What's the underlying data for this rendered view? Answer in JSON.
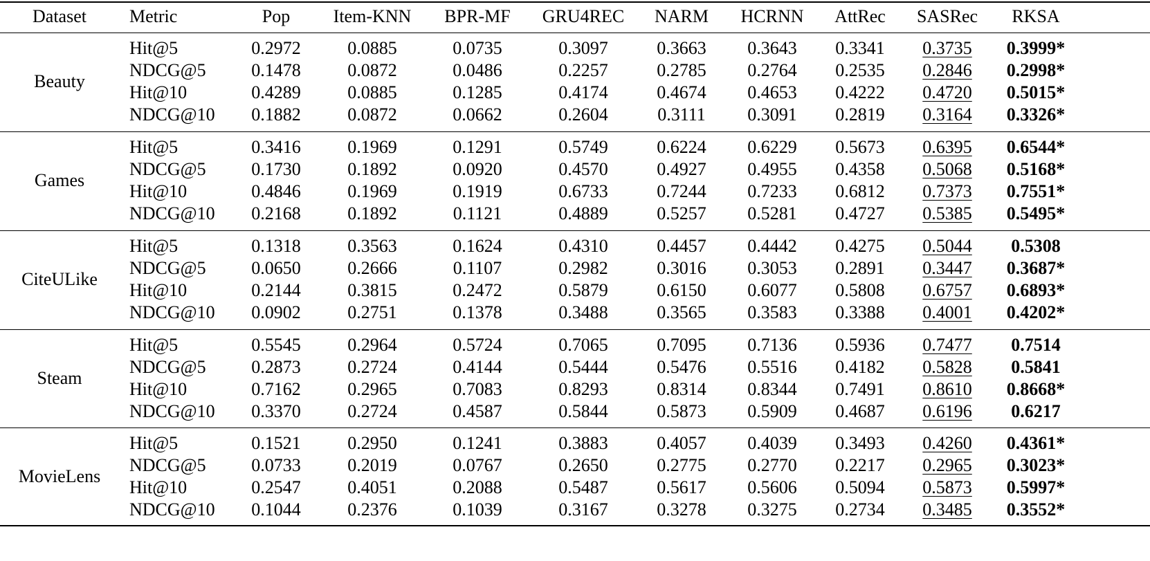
{
  "table": {
    "header": [
      "Dataset",
      "Metric",
      "Pop",
      "Item-KNN",
      "BPR-MF",
      "GRU4REC",
      "NARM",
      "HCRNN",
      "AttRec",
      "SASRec",
      "RKSA"
    ],
    "groups": [
      {
        "dataset": "Beauty",
        "rows": [
          [
            "Hit@5",
            "0.2972",
            "0.0885",
            "0.0735",
            "0.3097",
            "0.3663",
            "0.3643",
            "0.3341",
            "0.3735",
            "0.3999*"
          ],
          [
            "NDCG@5",
            "0.1478",
            "0.0872",
            "0.0486",
            "0.2257",
            "0.2785",
            "0.2764",
            "0.2535",
            "0.2846",
            "0.2998*"
          ],
          [
            "Hit@10",
            "0.4289",
            "0.0885",
            "0.1285",
            "0.4174",
            "0.4674",
            "0.4653",
            "0.4222",
            "0.4720",
            "0.5015*"
          ],
          [
            "NDCG@10",
            "0.1882",
            "0.0872",
            "0.0662",
            "0.2604",
            "0.3111",
            "0.3091",
            "0.2819",
            "0.3164",
            "0.3326*"
          ]
        ]
      },
      {
        "dataset": "Games",
        "rows": [
          [
            "Hit@5",
            "0.3416",
            "0.1969",
            "0.1291",
            "0.5749",
            "0.6224",
            "0.6229",
            "0.5673",
            "0.6395",
            "0.6544*"
          ],
          [
            "NDCG@5",
            "0.1730",
            "0.1892",
            "0.0920",
            "0.4570",
            "0.4927",
            "0.4955",
            "0.4358",
            "0.5068",
            "0.5168*"
          ],
          [
            "Hit@10",
            "0.4846",
            "0.1969",
            "0.1919",
            "0.6733",
            "0.7244",
            "0.7233",
            "0.6812",
            "0.7373",
            "0.7551*"
          ],
          [
            "NDCG@10",
            "0.2168",
            "0.1892",
            "0.1121",
            "0.4889",
            "0.5257",
            "0.5281",
            "0.4727",
            "0.5385",
            "0.5495*"
          ]
        ]
      },
      {
        "dataset": "CiteULike",
        "rows": [
          [
            "Hit@5",
            "0.1318",
            "0.3563",
            "0.1624",
            "0.4310",
            "0.4457",
            "0.4442",
            "0.4275",
            "0.5044",
            "0.5308"
          ],
          [
            "NDCG@5",
            "0.0650",
            "0.2666",
            "0.1107",
            "0.2982",
            "0.3016",
            "0.3053",
            "0.2891",
            "0.3447",
            "0.3687*"
          ],
          [
            "Hit@10",
            "0.2144",
            "0.3815",
            "0.2472",
            "0.5879",
            "0.6150",
            "0.6077",
            "0.5808",
            "0.6757",
            "0.6893*"
          ],
          [
            "NDCG@10",
            "0.0902",
            "0.2751",
            "0.1378",
            "0.3488",
            "0.3565",
            "0.3583",
            "0.3388",
            "0.4001",
            "0.4202*"
          ]
        ]
      },
      {
        "dataset": "Steam",
        "rows": [
          [
            "Hit@5",
            "0.5545",
            "0.2964",
            "0.5724",
            "0.7065",
            "0.7095",
            "0.7136",
            "0.5936",
            "0.7477",
            "0.7514"
          ],
          [
            "NDCG@5",
            "0.2873",
            "0.2724",
            "0.4144",
            "0.5444",
            "0.5476",
            "0.5516",
            "0.4182",
            "0.5828",
            "0.5841"
          ],
          [
            "Hit@10",
            "0.7162",
            "0.2965",
            "0.7083",
            "0.8293",
            "0.8314",
            "0.8344",
            "0.7491",
            "0.8610",
            "0.8668*"
          ],
          [
            "NDCG@10",
            "0.3370",
            "0.2724",
            "0.4587",
            "0.5844",
            "0.5873",
            "0.5909",
            "0.4687",
            "0.6196",
            "0.6217"
          ]
        ]
      },
      {
        "dataset": "MovieLens",
        "rows": [
          [
            "Hit@5",
            "0.1521",
            "0.2950",
            "0.1241",
            "0.3883",
            "0.4057",
            "0.4039",
            "0.3493",
            "0.4260",
            "0.4361*"
          ],
          [
            "NDCG@5",
            "0.0733",
            "0.2019",
            "0.0767",
            "0.2650",
            "0.2775",
            "0.2770",
            "0.2217",
            "0.2965",
            "0.3023*"
          ],
          [
            "Hit@10",
            "0.2547",
            "0.4051",
            "0.2088",
            "0.5487",
            "0.5617",
            "0.5606",
            "0.5094",
            "0.5873",
            "0.5997*"
          ],
          [
            "NDCG@10",
            "0.1044",
            "0.2376",
            "0.1039",
            "0.3167",
            "0.3278",
            "0.3275",
            "0.2734",
            "0.3485",
            "0.3552*"
          ]
        ]
      }
    ]
  }
}
